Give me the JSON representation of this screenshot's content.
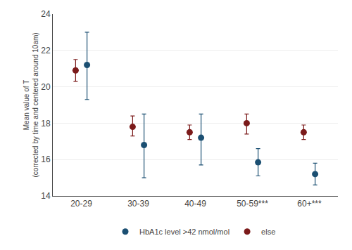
{
  "chart_data": {
    "type": "scatter",
    "categories": [
      "20-29",
      "30-39",
      "40-49",
      "50-59***",
      "60+***"
    ],
    "series": [
      {
        "name": "HbA1c level >42 nmol/mol",
        "color": "#1b4f72",
        "marker": "circle",
        "values": [
          21.2,
          16.8,
          17.2,
          15.85,
          15.2
        ],
        "ci_low": [
          19.3,
          15.0,
          15.7,
          15.1,
          14.6
        ],
        "ci_high": [
          23.0,
          18.5,
          18.5,
          16.6,
          15.8
        ]
      },
      {
        "name": "else",
        "color": "#7b1a1a",
        "marker": "circle",
        "values": [
          20.9,
          17.8,
          17.5,
          18.0,
          17.5
        ],
        "ci_low": [
          20.3,
          17.3,
          17.1,
          17.4,
          17.1
        ],
        "ci_high": [
          21.5,
          18.4,
          17.9,
          18.5,
          17.9
        ]
      }
    ],
    "ylabel": "Mean value of T\n(corrected by time and centered around 10am)",
    "ylim": [
      14,
      24
    ],
    "yticks": [
      14,
      16,
      18,
      20,
      22,
      24
    ],
    "grid": true,
    "legend": "bottom"
  }
}
